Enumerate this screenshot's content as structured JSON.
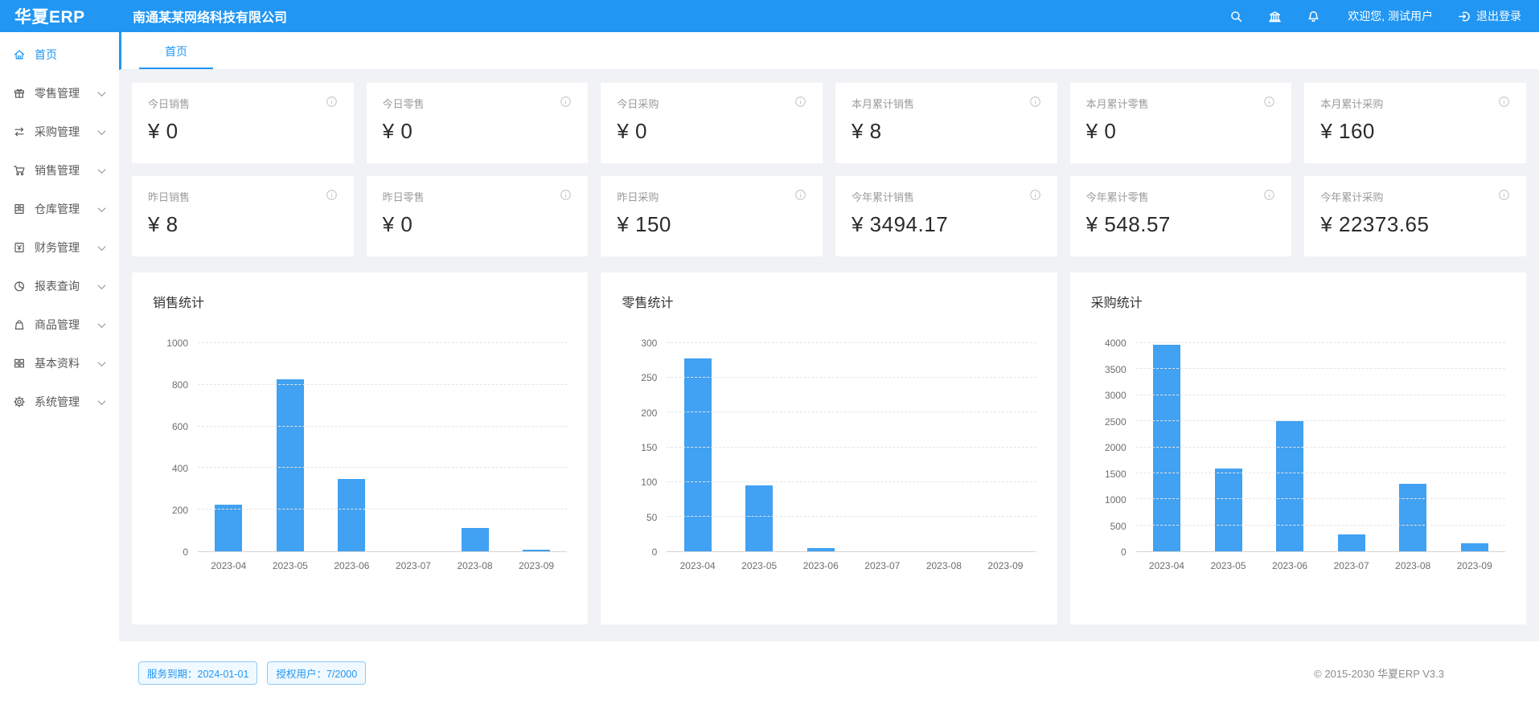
{
  "app": {
    "logo": "华夏ERP",
    "company": "南通某某网络科技有限公司",
    "welcome": "欢迎您, 测试用户",
    "logout_label": "退出登录"
  },
  "colors": {
    "primary": "#2196f3",
    "bar": "#41a1f2",
    "badge_text": "#2196f3"
  },
  "sidebar": {
    "items": [
      {
        "label": "首页",
        "icon": "home-icon",
        "active": true
      },
      {
        "label": "零售管理",
        "icon": "gift-icon",
        "active": false
      },
      {
        "label": "采购管理",
        "icon": "swap-icon",
        "active": false
      },
      {
        "label": "销售管理",
        "icon": "cart-icon",
        "active": false
      },
      {
        "label": "仓库管理",
        "icon": "warehouse-icon",
        "active": false
      },
      {
        "label": "财务管理",
        "icon": "finance-icon",
        "active": false
      },
      {
        "label": "报表查询",
        "icon": "pie-chart-icon",
        "active": false
      },
      {
        "label": "商品管理",
        "icon": "bag-icon",
        "active": false
      },
      {
        "label": "基本资料",
        "icon": "grid-icon",
        "active": false
      },
      {
        "label": "系统管理",
        "icon": "gear-icon",
        "active": false
      }
    ]
  },
  "tabs": [
    {
      "label": "首页",
      "active": true
    }
  ],
  "cards": [
    {
      "title": "今日销售",
      "value": "¥ 0"
    },
    {
      "title": "今日零售",
      "value": "¥ 0"
    },
    {
      "title": "今日采购",
      "value": "¥ 0"
    },
    {
      "title": "本月累计销售",
      "value": "¥ 8"
    },
    {
      "title": "本月累计零售",
      "value": "¥ 0"
    },
    {
      "title": "本月累计采购",
      "value": "¥ 160"
    },
    {
      "title": "昨日销售",
      "value": "¥ 8"
    },
    {
      "title": "昨日零售",
      "value": "¥ 0"
    },
    {
      "title": "昨日采购",
      "value": "¥ 150"
    },
    {
      "title": "今年累计销售",
      "value": "¥ 3494.17"
    },
    {
      "title": "今年累计零售",
      "value": "¥ 548.57"
    },
    {
      "title": "今年累计采购",
      "value": "¥ 22373.65"
    }
  ],
  "chart_data": [
    {
      "type": "bar",
      "title": "销售统计",
      "categories": [
        "2023-04",
        "2023-05",
        "2023-06",
        "2023-07",
        "2023-08",
        "2023-09"
      ],
      "values": [
        225,
        825,
        345,
        0,
        110,
        8
      ],
      "yticks": [
        0,
        200,
        400,
        600,
        800,
        1000
      ],
      "ylim": [
        0,
        1000
      ],
      "xlabel": "",
      "ylabel": "",
      "grid": true,
      "legend": "none"
    },
    {
      "type": "bar",
      "title": "零售统计",
      "categories": [
        "2023-04",
        "2023-05",
        "2023-06",
        "2023-07",
        "2023-08",
        "2023-09"
      ],
      "values": [
        277,
        95,
        5,
        0,
        0,
        0
      ],
      "yticks": [
        0,
        50,
        100,
        150,
        200,
        250,
        300
      ],
      "ylim": [
        0,
        300
      ],
      "xlabel": "",
      "ylabel": "",
      "grid": true,
      "legend": "none"
    },
    {
      "type": "bar",
      "title": "采购统计",
      "categories": [
        "2023-04",
        "2023-05",
        "2023-06",
        "2023-07",
        "2023-08",
        "2023-09"
      ],
      "values": [
        3950,
        1580,
        2500,
        330,
        1300,
        160
      ],
      "yticks": [
        0,
        500,
        1000,
        1500,
        2000,
        2500,
        3000,
        3500,
        4000
      ],
      "ylim": [
        0,
        4000
      ],
      "xlabel": "",
      "ylabel": "",
      "grid": true,
      "legend": "none"
    }
  ],
  "footer": {
    "service_badge": "服务到期：2024-01-01",
    "license_badge": "授权用户：7/2000",
    "copyright": "© 2015-2030 华夏ERP V3.3"
  }
}
